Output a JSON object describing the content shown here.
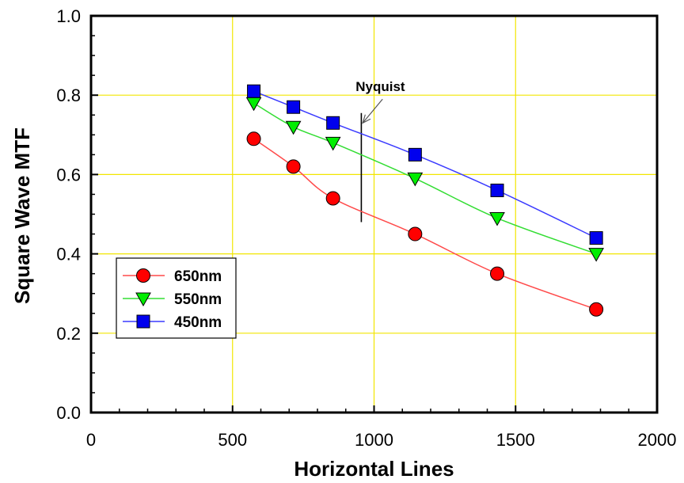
{
  "chart_data": {
    "type": "line",
    "title": "",
    "xlabel": "Horizontal Lines",
    "ylabel": "Square Wave MTF",
    "xlim": [
      0,
      2000
    ],
    "ylim": [
      0.0,
      1.0
    ],
    "xticks": [
      0,
      500,
      1000,
      1500,
      2000
    ],
    "yticks": [
      0.0,
      0.2,
      0.4,
      0.6,
      0.8,
      1.0
    ],
    "xtick_labels": [
      "0",
      "500",
      "1000",
      "1500",
      "2000"
    ],
    "ytick_labels": [
      "0.0",
      "0.2",
      "0.4",
      "0.6",
      "0.8",
      "1.0"
    ],
    "grid": true,
    "grid_color": "#f2e600",
    "legend_position": "lower-left",
    "series": [
      {
        "name": "650nm",
        "color": "#ff0000",
        "line_color": "#ff4a4a",
        "marker": "circle",
        "x": [
          575,
          715,
          855,
          1145,
          1435,
          1785
        ],
        "y": [
          0.69,
          0.62,
          0.54,
          0.45,
          0.35,
          0.26
        ]
      },
      {
        "name": "550nm",
        "color": "#00ee00",
        "line_color": "#33dd33",
        "marker": "triangle-down",
        "x": [
          575,
          715,
          855,
          1145,
          1435,
          1785
        ],
        "y": [
          0.78,
          0.72,
          0.68,
          0.59,
          0.49,
          0.4
        ]
      },
      {
        "name": "450nm",
        "color": "#0000ee",
        "line_color": "#3a3aff",
        "marker": "square",
        "x": [
          575,
          715,
          855,
          1145,
          1435,
          1785
        ],
        "y": [
          0.81,
          0.77,
          0.73,
          0.65,
          0.56,
          0.44
        ]
      }
    ],
    "annotations": [
      {
        "text": "Nyquist",
        "line_x": 955,
        "line_y": [
          0.48,
          0.755
        ],
        "arrow_from": [
          1030,
          0.79
        ],
        "arrow_to": [
          960,
          0.73
        ]
      }
    ]
  }
}
